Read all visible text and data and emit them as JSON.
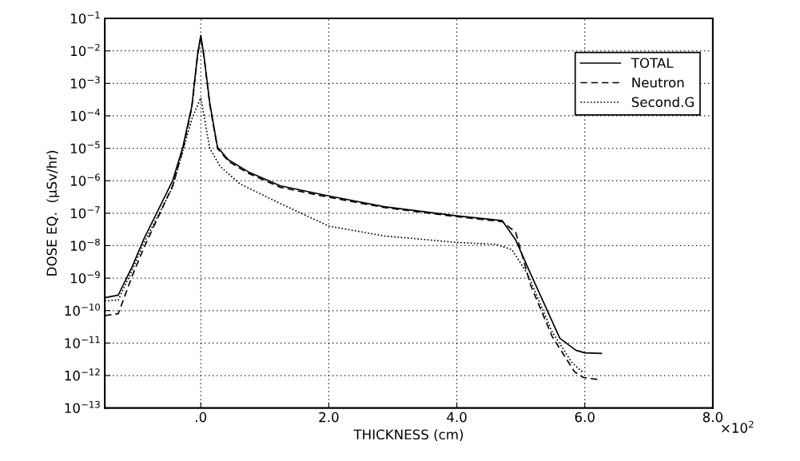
{
  "chart_data": {
    "type": "line",
    "xlabel": "THICKNESS (cm)",
    "ylabel": "DOSE EQ.  (μSv/hr)",
    "log": "y",
    "grid": true,
    "legend": "top right",
    "xlim": [
      -1.5,
      8.0
    ],
    "xticks": [
      {
        "value": 0,
        "label": ".0"
      },
      {
        "value": 2,
        "label": "2.0"
      },
      {
        "value": 4,
        "label": "4.0"
      },
      {
        "value": 6,
        "label": "6.0"
      },
      {
        "value": 8,
        "label": "8.0"
      }
    ],
    "ylim": [
      1e-13,
      0.1
    ],
    "yticks": [
      {
        "value": 1e-13,
        "label": "10$^{−13}$"
      },
      {
        "value": 1e-12,
        "label": "10$^{−12}$"
      },
      {
        "value": 1e-11,
        "label": "10$^{−11}$"
      },
      {
        "value": 1e-10,
        "label": "10$^{−10}$"
      },
      {
        "value": 1e-09,
        "label": "10$^{−9}$"
      },
      {
        "value": 1e-08,
        "label": "10$^{−8}$"
      },
      {
        "value": 1e-07,
        "label": "10$^{−7}$"
      },
      {
        "value": 1e-06,
        "label": "10$^{−6}$"
      },
      {
        "value": 1e-05,
        "label": "10$^{−5}$"
      },
      {
        "value": 0.0001,
        "label": "10$^{−4}$"
      },
      {
        "value": 0.001,
        "label": "10$^{−3}$"
      },
      {
        "value": 0.01,
        "label": "10$^{−2}$"
      },
      {
        "value": 0.1,
        "label": "10$^{−1}$"
      }
    ],
    "annotations": [
      "×10$^{2}$"
    ],
    "series": [
      {
        "name": "TOTAL",
        "color": "#000000",
        "line_style": "solid",
        "x": [
          -1.5,
          -1.29,
          -1.07,
          -0.89,
          -0.44,
          -0.28,
          -0.14,
          -0.05,
          0.0,
          0.05,
          0.14,
          0.26,
          0.43,
          0.74,
          1.24,
          2.0,
          2.86,
          4.0,
          4.71,
          4.92,
          5.15,
          5.61,
          5.86,
          6.0,
          6.26
        ],
        "values": [
          2.5e-10,
          3e-10,
          2.3e-09,
          1.6e-08,
          1e-06,
          1.1e-05,
          0.0002,
          0.008,
          0.03,
          0.007,
          0.00025,
          1.1e-05,
          4.4e-06,
          1.9e-06,
          7e-07,
          3.4e-07,
          1.6e-07,
          8.3e-08,
          5.9e-08,
          1.5e-08,
          1.4e-09,
          1.4e-11,
          6e-12,
          5e-12,
          4.8e-12
        ]
      },
      {
        "name": "Neutron",
        "color": "#000000",
        "line_style": "dashed",
        "x": [
          -1.5,
          -1.29,
          -1.07,
          -0.89,
          -0.44,
          -0.28,
          -0.14,
          -0.05,
          0.0,
          0.05,
          0.14,
          0.26,
          0.43,
          0.74,
          1.24,
          2.0,
          2.86,
          4.0,
          4.71,
          4.92,
          5.15,
          5.49,
          5.84,
          5.98,
          6.24
        ],
        "values": [
          7e-11,
          8e-11,
          1.2e-09,
          8.5e-09,
          7e-07,
          9e-06,
          0.00018,
          0.007,
          0.028,
          0.0065,
          0.00022,
          1e-05,
          4e-06,
          1.7e-06,
          6.3e-07,
          3.1e-07,
          1.5e-07,
          7.8e-08,
          5.5e-08,
          2.6e-08,
          6.3e-10,
          1.6e-11,
          1.3e-12,
          8.7e-13,
          7.4e-13
        ]
      },
      {
        "name": "Second.G",
        "color": "#000000",
        "line_style": "dotted",
        "x": [
          -1.5,
          -1.29,
          -1.07,
          -0.89,
          -0.44,
          -0.14,
          0.0,
          0.14,
          0.3,
          0.61,
          1.24,
          2.0,
          2.86,
          4.0,
          4.61,
          4.86,
          5.11,
          5.49,
          5.8,
          5.96
        ],
        "values": [
          2e-10,
          2.1e-10,
          1.8e-09,
          1.2e-08,
          6.3e-07,
          8e-05,
          0.00036,
          1e-05,
          2.8e-06,
          8e-07,
          2e-07,
          4e-08,
          2e-08,
          1.26e-08,
          1.1e-08,
          7.6e-09,
          1.3e-09,
          2.2e-11,
          2.5e-12,
          1.3e-12
        ]
      }
    ]
  }
}
